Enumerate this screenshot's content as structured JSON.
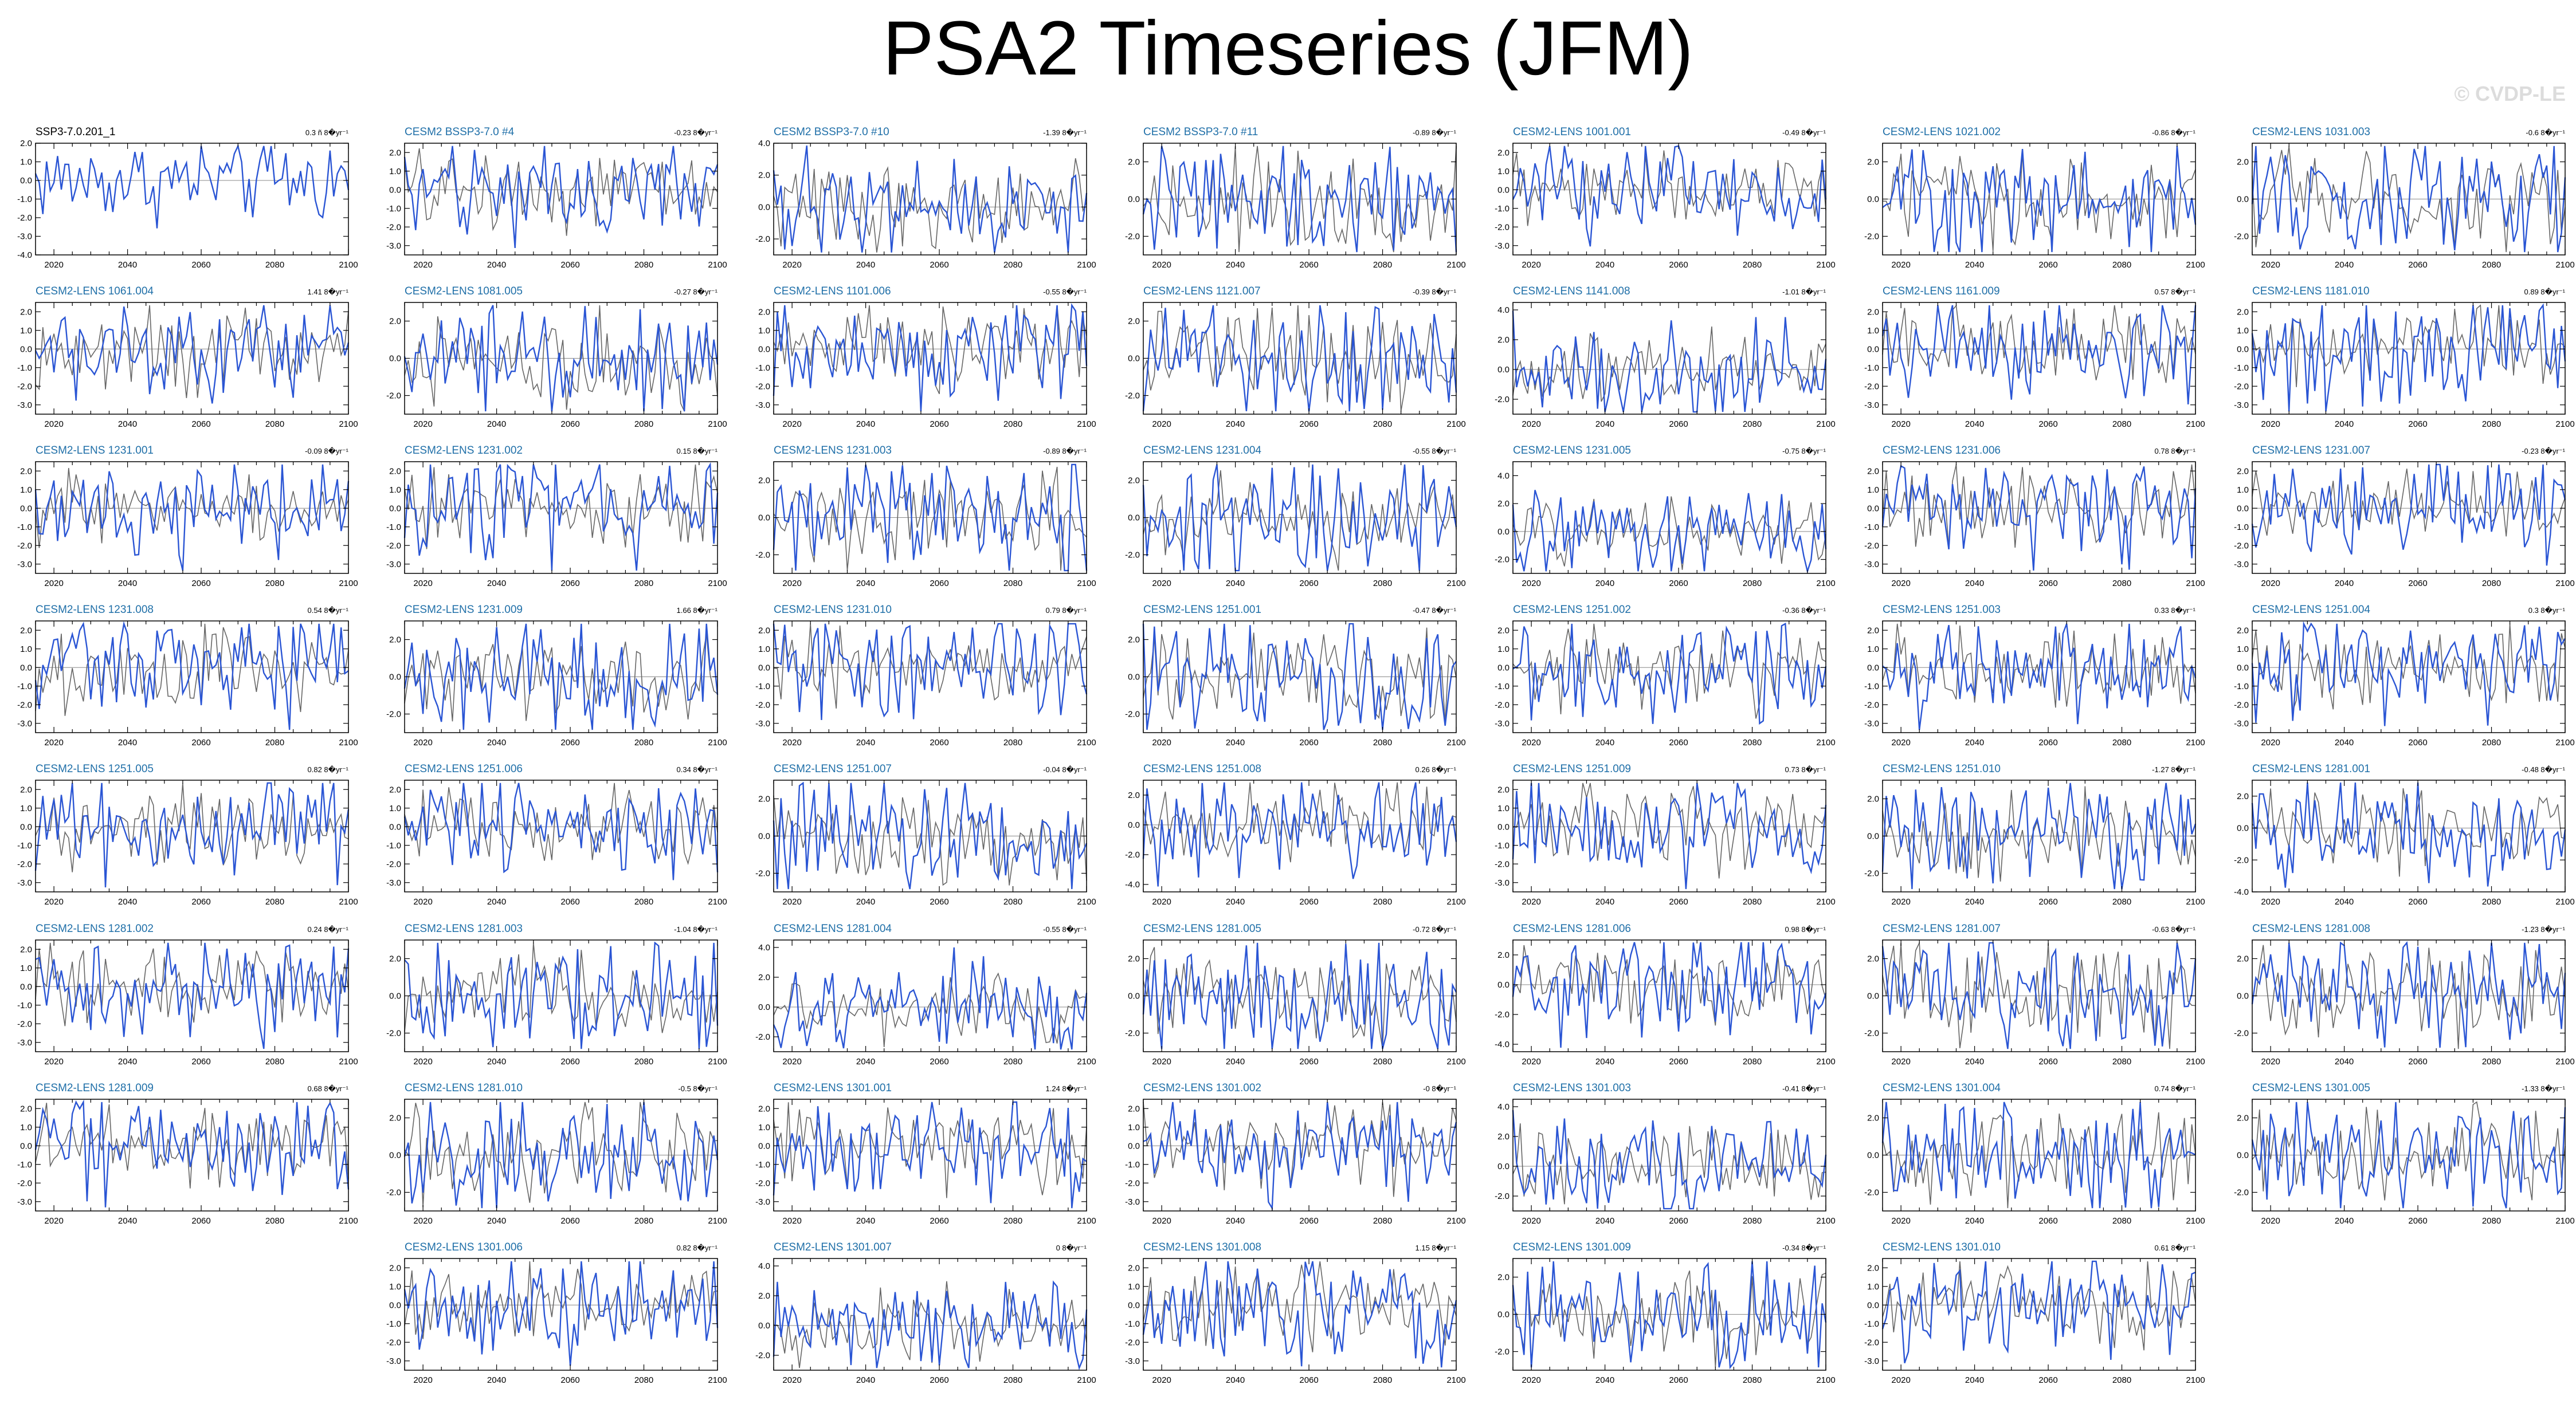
{
  "title": "PSA2 Timeseries (JFM)",
  "watermark": "© CVDP-LE",
  "colors": {
    "member_line": "#2a55d4",
    "ensemble_line": "#666666",
    "zero_line": "#888888",
    "title_obs": "#000000",
    "title_model": "#1f6fa8"
  },
  "chart_data": {
    "type": "line",
    "xlim": [
      2015,
      2100
    ],
    "x_ticks": [
      2020,
      2040,
      2060,
      2080,
      2100
    ],
    "panels": [
      {
        "title": "SSP3-7.0.201_1",
        "trend": "0.3 ñ 8�yr⁻¹",
        "ylim": [
          -4,
          2
        ],
        "yticks": [
          "2.0",
          "1.0",
          "0.0",
          "-1.0",
          "-2.0",
          "-3.0",
          "-4.0"
        ],
        "ens": false
      },
      {
        "title": "CESM2 BSSP3-7.0 #4",
        "trend": "-0.23 8�yr⁻¹",
        "ylim": [
          -3.5,
          2.5
        ],
        "yticks": [
          "2.0",
          "1.0",
          "0.0",
          "-1.0",
          "-2.0",
          "-3.0"
        ],
        "ens": true
      },
      {
        "title": "CESM2 BSSP3-7.0 #10",
        "trend": "-1.39 8�yr⁻¹",
        "ylim": [
          -3,
          4
        ],
        "yticks": [
          "4.0",
          "2.0",
          "0.0",
          "-2.0"
        ],
        "ens": true
      },
      {
        "title": "CESM2 BSSP3-7.0 #11",
        "trend": "-0.89 8�yr⁻¹",
        "ylim": [
          -3,
          3
        ],
        "yticks": [
          "2.0",
          "0.0",
          "-2.0"
        ],
        "ens": true
      },
      {
        "title": "CESM2-LENS 1001.001",
        "trend": "-0.49 8�yr⁻¹",
        "ylim": [
          -3.5,
          2.5
        ],
        "yticks": [
          "2.0",
          "1.0",
          "0.0",
          "-1.0",
          "-2.0",
          "-3.0"
        ],
        "ens": true
      },
      {
        "title": "CESM2-LENS 1021.002",
        "trend": "-0.86 8�yr⁻¹",
        "ylim": [
          -3,
          3
        ],
        "yticks": [
          "2.0",
          "0.0",
          "-2.0"
        ],
        "ens": true
      },
      {
        "title": "CESM2-LENS 1031.003",
        "trend": "-0.6 8�yr⁻¹",
        "ylim": [
          -3,
          3
        ],
        "yticks": [
          "2.0",
          "0.0",
          "-2.0"
        ],
        "ens": true
      },
      {
        "title": "CESM2-LENS 1061.004",
        "trend": "1.41 8�yr⁻¹",
        "ylim": [
          -3.5,
          2.5
        ],
        "yticks": [
          "2.0",
          "1.0",
          "0.0",
          "-1.0",
          "-2.0",
          "-3.0"
        ],
        "ens": true
      },
      {
        "title": "CESM2-LENS 1081.005",
        "trend": "-0.27 8�yr⁻¹",
        "ylim": [
          -3,
          3
        ],
        "yticks": [
          "2.0",
          "0.0",
          "-2.0"
        ],
        "ens": true
      },
      {
        "title": "CESM2-LENS 1101.006",
        "trend": "-0.55 8�yr⁻¹",
        "ylim": [
          -3.5,
          2.5
        ],
        "yticks": [
          "2.0",
          "1.0",
          "0.0",
          "-1.0",
          "-2.0",
          "-3.0"
        ],
        "ens": true
      },
      {
        "title": "CESM2-LENS 1121.007",
        "trend": "-0.39 8�yr⁻¹",
        "ylim": [
          -3,
          3
        ],
        "yticks": [
          "2.0",
          "0.0",
          "-2.0"
        ],
        "ens": true
      },
      {
        "title": "CESM2-LENS 1141.008",
        "trend": "-1.01 8�yr⁻¹",
        "ylim": [
          -3,
          4.5
        ],
        "yticks": [
          "4.0",
          "2.0",
          "0.0",
          "-2.0"
        ],
        "ens": true
      },
      {
        "title": "CESM2-LENS 1161.009",
        "trend": "0.57 8�yr⁻¹",
        "ylim": [
          -3.5,
          2.5
        ],
        "yticks": [
          "2.0",
          "1.0",
          "0.0",
          "-1.0",
          "-2.0",
          "-3.0"
        ],
        "ens": true
      },
      {
        "title": "CESM2-LENS 1181.010",
        "trend": "0.89 8�yr⁻¹",
        "ylim": [
          -3.5,
          2.5
        ],
        "yticks": [
          "2.0",
          "1.0",
          "0.0",
          "-1.0",
          "-2.0",
          "-3.0"
        ],
        "ens": true
      },
      {
        "title": "CESM2-LENS 1231.001",
        "trend": "-0.09 8�yr⁻¹",
        "ylim": [
          -3.5,
          2.5
        ],
        "yticks": [
          "2.0",
          "1.0",
          "0.0",
          "-1.0",
          "-2.0",
          "-3.0"
        ],
        "ens": true
      },
      {
        "title": "CESM2-LENS 1231.002",
        "trend": "0.15 8�yr⁻¹",
        "ylim": [
          -3.5,
          2.5
        ],
        "yticks": [
          "2.0",
          "1.0",
          "0.0",
          "-1.0",
          "-2.0",
          "-3.0"
        ],
        "ens": true
      },
      {
        "title": "CESM2-LENS 1231.003",
        "trend": "-0.89 8�yr⁻¹",
        "ylim": [
          -3,
          3
        ],
        "yticks": [
          "2.0",
          "0.0",
          "-2.0"
        ],
        "ens": true
      },
      {
        "title": "CESM2-LENS 1231.004",
        "trend": "-0.55 8�yr⁻¹",
        "ylim": [
          -3,
          3
        ],
        "yticks": [
          "2.0",
          "0.0",
          "-2.0"
        ],
        "ens": true
      },
      {
        "title": "CESM2-LENS 1231.005",
        "trend": "-0.75 8�yr⁻¹",
        "ylim": [
          -3,
          5
        ],
        "yticks": [
          "4.0",
          "2.0",
          "0.0",
          "-2.0"
        ],
        "ens": true
      },
      {
        "title": "CESM2-LENS 1231.006",
        "trend": "0.78 8�yr⁻¹",
        "ylim": [
          -3.5,
          2.5
        ],
        "yticks": [
          "2.0",
          "1.0",
          "0.0",
          "-1.0",
          "-2.0",
          "-3.0"
        ],
        "ens": true
      },
      {
        "title": "CESM2-LENS 1231.007",
        "trend": "-0.23 8�yr⁻¹",
        "ylim": [
          -3.5,
          2.5
        ],
        "yticks": [
          "2.0",
          "1.0",
          "0.0",
          "-1.0",
          "-2.0",
          "-3.0"
        ],
        "ens": true
      },
      {
        "title": "CESM2-LENS 1231.008",
        "trend": "0.54 8�yr⁻¹",
        "ylim": [
          -3.5,
          2.5
        ],
        "yticks": [
          "2.0",
          "1.0",
          "0.0",
          "-1.0",
          "-2.0",
          "-3.0"
        ],
        "ens": true
      },
      {
        "title": "CESM2-LENS 1231.009",
        "trend": "1.66 8�yr⁻¹",
        "ylim": [
          -3,
          3
        ],
        "yticks": [
          "2.0",
          "0.0",
          "-2.0"
        ],
        "ens": true
      },
      {
        "title": "CESM2-LENS 1231.010",
        "trend": "0.79 8�yr⁻¹",
        "ylim": [
          -3.5,
          2.5
        ],
        "yticks": [
          "2.0",
          "1.0",
          "0.0",
          "-1.0",
          "-2.0",
          "-3.0"
        ],
        "ens": true
      },
      {
        "title": "CESM2-LENS 1251.001",
        "trend": "-0.47 8�yr⁻¹",
        "ylim": [
          -3,
          3
        ],
        "yticks": [
          "2.0",
          "0.0",
          "-2.0"
        ],
        "ens": true
      },
      {
        "title": "CESM2-LENS 1251.002",
        "trend": "-0.36 8�yr⁻¹",
        "ylim": [
          -3.5,
          2.5
        ],
        "yticks": [
          "2.0",
          "1.0",
          "0.0",
          "-1.0",
          "-2.0",
          "-3.0"
        ],
        "ens": true
      },
      {
        "title": "CESM2-LENS 1251.003",
        "trend": "0.33 8�yr⁻¹",
        "ylim": [
          -3.5,
          2.5
        ],
        "yticks": [
          "2.0",
          "1.0",
          "0.0",
          "-1.0",
          "-2.0",
          "-3.0"
        ],
        "ens": true
      },
      {
        "title": "CESM2-LENS 1251.004",
        "trend": "0.3 8�yr⁻¹",
        "ylim": [
          -3.5,
          2.5
        ],
        "yticks": [
          "2.0",
          "1.0",
          "0.0",
          "-1.0",
          "-2.0",
          "-3.0"
        ],
        "ens": true
      },
      {
        "title": "CESM2-LENS 1251.005",
        "trend": "0.82 8�yr⁻¹",
        "ylim": [
          -3.5,
          2.5
        ],
        "yticks": [
          "2.0",
          "1.0",
          "0.0",
          "-1.0",
          "-2.0",
          "-3.0"
        ],
        "ens": true
      },
      {
        "title": "CESM2-LENS 1251.006",
        "trend": "0.34 8�yr⁻¹",
        "ylim": [
          -3.5,
          2.5
        ],
        "yticks": [
          "2.0",
          "1.0",
          "0.0",
          "-1.0",
          "-2.0",
          "-3.0"
        ],
        "ens": true
      },
      {
        "title": "CESM2-LENS 1251.007",
        "trend": "-0.04 8�yr⁻¹",
        "ylim": [
          -3,
          3
        ],
        "yticks": [
          "2.0",
          "0.0",
          "-2.0"
        ],
        "ens": true
      },
      {
        "title": "CESM2-LENS 1251.008",
        "trend": "0.26 8�yr⁻¹",
        "ylim": [
          -4.5,
          3
        ],
        "yticks": [
          "2.0",
          "0.0",
          "-2.0",
          "-4.0"
        ],
        "ens": true
      },
      {
        "title": "CESM2-LENS 1251.009",
        "trend": "0.73 8�yr⁻¹",
        "ylim": [
          -3.5,
          2.5
        ],
        "yticks": [
          "2.0",
          "1.0",
          "0.0",
          "-1.0",
          "-2.0",
          "-3.0"
        ],
        "ens": true
      },
      {
        "title": "CESM2-LENS 1251.010",
        "trend": "-1.27 8�yr⁻¹",
        "ylim": [
          -3,
          3
        ],
        "yticks": [
          "2.0",
          "0.0",
          "-2.0"
        ],
        "ens": true
      },
      {
        "title": "CESM2-LENS 1281.001",
        "trend": "-0.48 8�yr⁻¹",
        "ylim": [
          -4,
          3
        ],
        "yticks": [
          "2.0",
          "0.0",
          "-2.0",
          "-4.0"
        ],
        "ens": true
      },
      {
        "title": "CESM2-LENS 1281.002",
        "trend": "0.24 8�yr⁻¹",
        "ylim": [
          -3.5,
          2.5
        ],
        "yticks": [
          "2.0",
          "1.0",
          "0.0",
          "-1.0",
          "-2.0",
          "-3.0"
        ],
        "ens": true
      },
      {
        "title": "CESM2-LENS 1281.003",
        "trend": "-1.04 8�yr⁻¹",
        "ylim": [
          -3,
          3
        ],
        "yticks": [
          "2.0",
          "0.0",
          "-2.0"
        ],
        "ens": true
      },
      {
        "title": "CESM2-LENS 1281.004",
        "trend": "-0.55 8�yr⁻¹",
        "ylim": [
          -3,
          4.5
        ],
        "yticks": [
          "4.0",
          "2.0",
          "0.0",
          "-2.0"
        ],
        "ens": true
      },
      {
        "title": "CESM2-LENS 1281.005",
        "trend": "-0.72 8�yr⁻¹",
        "ylim": [
          -3,
          3
        ],
        "yticks": [
          "2.0",
          "0.0",
          "-2.0"
        ],
        "ens": true
      },
      {
        "title": "CESM2-LENS 1281.006",
        "trend": "0.98 8�yr⁻¹",
        "ylim": [
          -4.5,
          3
        ],
        "yticks": [
          "2.0",
          "0.0",
          "-2.0",
          "-4.0"
        ],
        "ens": true
      },
      {
        "title": "CESM2-LENS 1281.007",
        "trend": "-0.63 8�yr⁻¹",
        "ylim": [
          -3,
          3
        ],
        "yticks": [
          "2.0",
          "0.0",
          "-2.0"
        ],
        "ens": true
      },
      {
        "title": "CESM2-LENS 1281.008",
        "trend": "-1.23 8�yr⁻¹",
        "ylim": [
          -3,
          3
        ],
        "yticks": [
          "2.0",
          "0.0",
          "-2.0"
        ],
        "ens": true
      },
      {
        "title": "CESM2-LENS 1281.009",
        "trend": "0.68 8�yr⁻¹",
        "ylim": [
          -3.5,
          2.5
        ],
        "yticks": [
          "2.0",
          "1.0",
          "0.0",
          "-1.0",
          "-2.0",
          "-3.0"
        ],
        "ens": true
      },
      {
        "title": "CESM2-LENS 1281.010",
        "trend": "-0.5 8�yr⁻¹",
        "ylim": [
          -3,
          3
        ],
        "yticks": [
          "2.0",
          "0.0",
          "-2.0"
        ],
        "ens": true
      },
      {
        "title": "CESM2-LENS 1301.001",
        "trend": "1.24 8�yr⁻¹",
        "ylim": [
          -3.5,
          2.5
        ],
        "yticks": [
          "2.0",
          "1.0",
          "0.0",
          "-1.0",
          "-2.0",
          "-3.0"
        ],
        "ens": true
      },
      {
        "title": "CESM2-LENS 1301.002",
        "trend": "-0 8�yr⁻¹",
        "ylim": [
          -3.5,
          2.5
        ],
        "yticks": [
          "2.0",
          "1.0",
          "0.0",
          "-1.0",
          "-2.0",
          "-3.0"
        ],
        "ens": true
      },
      {
        "title": "CESM2-LENS 1301.003",
        "trend": "-0.41 8�yr⁻¹",
        "ylim": [
          -3,
          4.5
        ],
        "yticks": [
          "4.0",
          "2.0",
          "0.0",
          "-2.0"
        ],
        "ens": true
      },
      {
        "title": "CESM2-LENS 1301.004",
        "trend": "0.74 8�yr⁻¹",
        "ylim": [
          -3,
          3
        ],
        "yticks": [
          "2.0",
          "0.0",
          "-2.0"
        ],
        "ens": true
      },
      {
        "title": "CESM2-LENS 1301.005",
        "trend": "-1.33 8�yr⁻¹",
        "ylim": [
          -3,
          3
        ],
        "yticks": [
          "2.0",
          "0.0",
          "-2.0"
        ],
        "ens": true
      },
      {
        "title": "CESM2-LENS 1301.006",
        "trend": "0.82 8�yr⁻¹",
        "ylim": [
          -3.5,
          2.5
        ],
        "yticks": [
          "2.0",
          "1.0",
          "0.0",
          "-1.0",
          "-2.0",
          "-3.0"
        ],
        "ens": true
      },
      {
        "title": "CESM2-LENS 1301.007",
        "trend": "0 8�yr⁻¹",
        "ylim": [
          -3,
          4.5
        ],
        "yticks": [
          "4.0",
          "2.0",
          "0.0",
          "-2.0"
        ],
        "ens": true
      },
      {
        "title": "CESM2-LENS 1301.008",
        "trend": "1.15 8�yr⁻¹",
        "ylim": [
          -3.5,
          2.5
        ],
        "yticks": [
          "2.0",
          "1.0",
          "0.0",
          "-1.0",
          "-2.0",
          "-3.0"
        ],
        "ens": true
      },
      {
        "title": "CESM2-LENS 1301.009",
        "trend": "-0.34 8�yr⁻¹",
        "ylim": [
          -3,
          3
        ],
        "yticks": [
          "2.0",
          "0.0",
          "-2.0"
        ],
        "ens": true
      },
      {
        "title": "CESM2-LENS 1301.010",
        "trend": "0.61 8�yr⁻¹",
        "ylim": [
          -3.5,
          2.5
        ],
        "yticks": [
          "2.0",
          "1.0",
          "0.0",
          "-1.0",
          "-2.0",
          "-3.0"
        ],
        "ens": true
      }
    ]
  }
}
